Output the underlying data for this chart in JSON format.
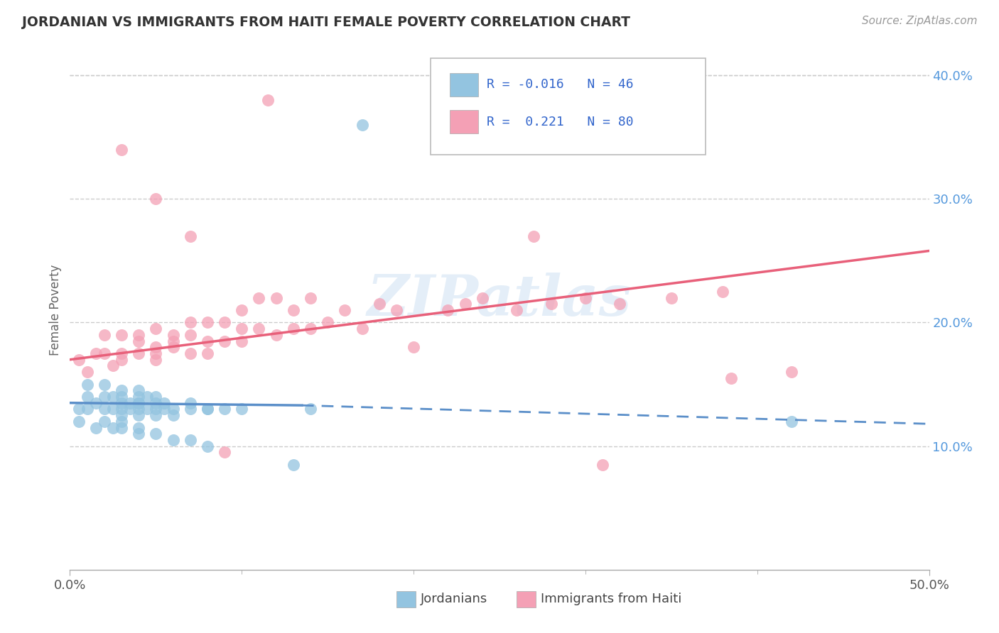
{
  "title": "JORDANIAN VS IMMIGRANTS FROM HAITI FEMALE POVERTY CORRELATION CHART",
  "source": "Source: ZipAtlas.com",
  "ylabel": "Female Poverty",
  "watermark": "ZIPatlas",
  "xlim": [
    0.0,
    0.5
  ],
  "ylim": [
    0.0,
    0.42
  ],
  "x_tick_positions": [
    0.0,
    0.5
  ],
  "x_tick_labels": [
    "0.0%",
    "50.0%"
  ],
  "x_tick_minor_positions": [
    0.1,
    0.2,
    0.3,
    0.4
  ],
  "y_tick_positions": [
    0.1,
    0.2,
    0.3,
    0.4
  ],
  "y_tick_labels": [
    "10.0%",
    "20.0%",
    "30.0%",
    "40.0%"
  ],
  "color_jordanian": "#93c4e0",
  "color_haiti": "#f4a0b5",
  "color_line_jordanian": "#5b8fc9",
  "color_line_haiti": "#e8607a",
  "background_color": "#ffffff",
  "grid_color": "#cccccc",
  "legend_text_color": "#3366cc",
  "right_tick_color": "#5599dd",
  "jordanian_x": [
    0.005,
    0.01,
    0.01,
    0.015,
    0.02,
    0.02,
    0.02,
    0.025,
    0.025,
    0.03,
    0.03,
    0.03,
    0.03,
    0.03,
    0.035,
    0.035,
    0.04,
    0.04,
    0.04,
    0.04,
    0.04,
    0.04,
    0.045,
    0.045,
    0.05,
    0.05,
    0.05,
    0.05,
    0.055,
    0.055,
    0.06,
    0.06,
    0.07,
    0.07,
    0.08,
    0.08,
    0.09,
    0.1,
    0.13,
    0.14,
    0.17,
    0.42
  ],
  "jordanian_y": [
    0.13,
    0.14,
    0.15,
    0.135,
    0.13,
    0.14,
    0.15,
    0.13,
    0.14,
    0.125,
    0.13,
    0.135,
    0.14,
    0.145,
    0.13,
    0.135,
    0.125,
    0.13,
    0.135,
    0.14,
    0.145,
    0.135,
    0.13,
    0.14,
    0.125,
    0.13,
    0.135,
    0.14,
    0.13,
    0.135,
    0.125,
    0.13,
    0.13,
    0.135,
    0.13,
    0.13,
    0.13,
    0.13,
    0.085,
    0.13,
    0.36,
    0.12
  ],
  "jordanian_x2": [
    0.005,
    0.01,
    0.015,
    0.02,
    0.025,
    0.03,
    0.03,
    0.04,
    0.04,
    0.05,
    0.06,
    0.07,
    0.08
  ],
  "jordanian_y2": [
    0.12,
    0.13,
    0.115,
    0.12,
    0.115,
    0.12,
    0.115,
    0.11,
    0.115,
    0.11,
    0.105,
    0.105,
    0.1
  ],
  "haiti_x": [
    0.005,
    0.01,
    0.015,
    0.02,
    0.02,
    0.025,
    0.03,
    0.03,
    0.03,
    0.04,
    0.04,
    0.04,
    0.05,
    0.05,
    0.05,
    0.05,
    0.06,
    0.06,
    0.06,
    0.07,
    0.07,
    0.07,
    0.08,
    0.08,
    0.08,
    0.09,
    0.09,
    0.1,
    0.1,
    0.1,
    0.11,
    0.11,
    0.12,
    0.12,
    0.13,
    0.13,
    0.14,
    0.14,
    0.15,
    0.16,
    0.17,
    0.18,
    0.19,
    0.2,
    0.22,
    0.23,
    0.24,
    0.26,
    0.28,
    0.3,
    0.32,
    0.35,
    0.38,
    0.42
  ],
  "haiti_y": [
    0.17,
    0.16,
    0.175,
    0.175,
    0.19,
    0.165,
    0.17,
    0.175,
    0.19,
    0.175,
    0.185,
    0.19,
    0.17,
    0.175,
    0.18,
    0.195,
    0.18,
    0.185,
    0.19,
    0.175,
    0.19,
    0.2,
    0.175,
    0.185,
    0.2,
    0.185,
    0.2,
    0.185,
    0.195,
    0.21,
    0.195,
    0.22,
    0.19,
    0.22,
    0.195,
    0.21,
    0.195,
    0.22,
    0.2,
    0.21,
    0.195,
    0.215,
    0.21,
    0.18,
    0.21,
    0.215,
    0.22,
    0.21,
    0.215,
    0.22,
    0.215,
    0.22,
    0.225,
    0.16
  ],
  "haiti_x_outliers": [
    0.03,
    0.05,
    0.07,
    0.09,
    0.115,
    0.27,
    0.31,
    0.385
  ],
  "haiti_y_outliers": [
    0.34,
    0.3,
    0.27,
    0.095,
    0.38,
    0.27,
    0.085,
    0.155
  ],
  "jord_line_x0": 0.0,
  "jord_line_x_solid_end": 0.135,
  "jord_line_x_end": 0.5,
  "jord_line_y_start": 0.135,
  "jord_line_y_solid_end": 0.133,
  "jord_line_y_end": 0.118,
  "haiti_line_x0": 0.0,
  "haiti_line_x_end": 0.5,
  "haiti_line_y_start": 0.17,
  "haiti_line_y_end": 0.258
}
